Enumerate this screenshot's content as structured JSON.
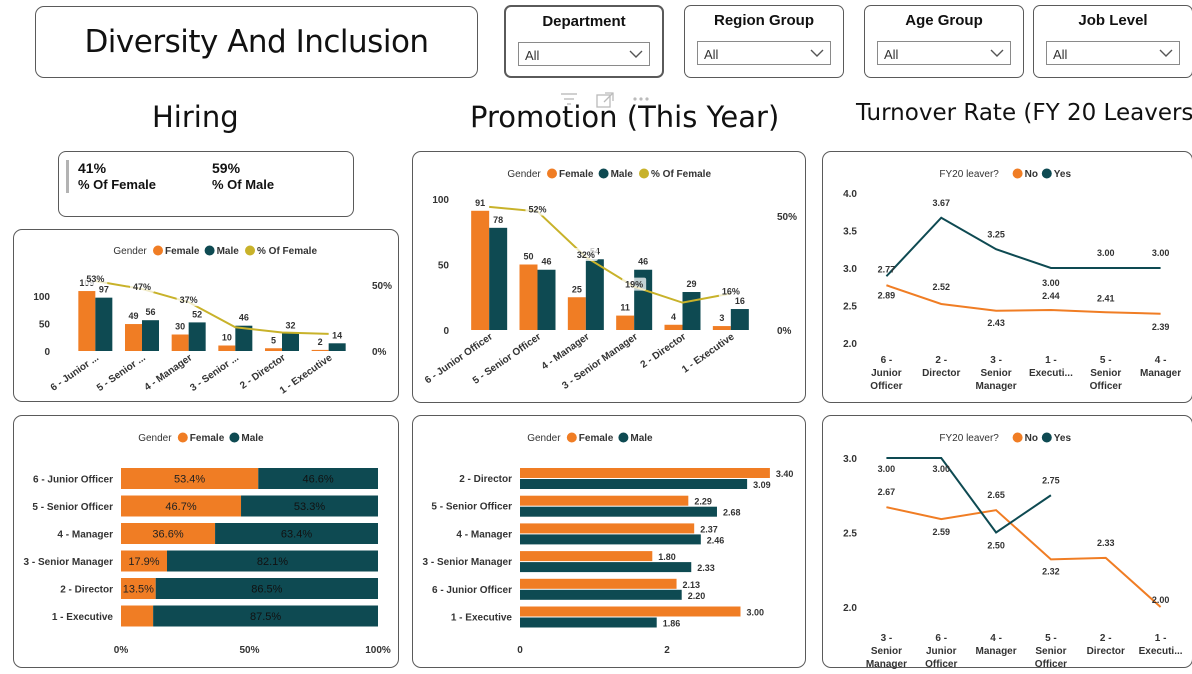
{
  "title": "Diversity And Inclusion",
  "slicers": [
    {
      "label": "Department",
      "value": "All"
    },
    {
      "label": "Region Group",
      "value": "All"
    },
    {
      "label": "Age Group",
      "value": "All"
    },
    {
      "label": "Job Level",
      "value": "All"
    }
  ],
  "sections": {
    "hiring": "Hiring",
    "promotion": "Promotion (This Year)",
    "turnover": "Turnover Rate (FY 20 Leavers)"
  },
  "kpi": {
    "female_value": "41%",
    "female_label": "% Of Female",
    "male_value": "59%",
    "male_label": "% Of Male"
  },
  "colors": {
    "female": "#f07d24",
    "male": "#0e4a52",
    "pct": "#c8b22a",
    "axis": "#252423"
  },
  "chart_data": [
    {
      "id": "hiring-combo",
      "type": "bar",
      "legend_title": "Gender",
      "legend": [
        "Female",
        "Male",
        "% Of Female"
      ],
      "categories": [
        "6 - Junior ...",
        "5 - Senior ...",
        "4 - Manager",
        "3 - Senior ...",
        "2 - Director",
        "1 - Executive"
      ],
      "series": [
        {
          "name": "Female",
          "values": [
            109,
            49,
            30,
            10,
            5,
            2
          ]
        },
        {
          "name": "Male",
          "values": [
            97,
            56,
            52,
            46,
            32,
            14
          ]
        },
        {
          "name": "% Of Female",
          "values": [
            53,
            47,
            37,
            18,
            14,
            13
          ],
          "labels": [
            "53%",
            "47%",
            "37%",
            "",
            "",
            ""
          ]
        }
      ],
      "yticks": [
        "0",
        "50",
        "100"
      ],
      "y2ticks": [
        "0%",
        "50%"
      ]
    },
    {
      "id": "promotion-combo",
      "type": "bar",
      "legend_title": "Gender",
      "legend": [
        "Female",
        "Male",
        "% Of Female"
      ],
      "categories": [
        "6 - Junior Officer",
        "5 - Senior Officer",
        "4 - Manager",
        "3 - Senior Manager",
        "2 - Director",
        "1 - Executive"
      ],
      "series": [
        {
          "name": "Female",
          "values": [
            91,
            50,
            25,
            11,
            4,
            3
          ]
        },
        {
          "name": "Male",
          "values": [
            78,
            46,
            54,
            46,
            29,
            16
          ]
        },
        {
          "name": "% Of Female",
          "values": [
            54,
            52,
            32,
            19,
            12,
            16
          ],
          "labels": [
            "",
            "52%",
            "32%",
            "19%",
            "",
            "16%"
          ]
        }
      ],
      "yticks": [
        "0",
        "50",
        "100"
      ],
      "y2ticks": [
        "0%",
        "50%"
      ]
    },
    {
      "id": "turnover-line-1",
      "type": "line",
      "legend_title": "FY20 leaver?",
      "legend": [
        "No",
        "Yes"
      ],
      "categories": [
        "6 - Junior Officer",
        "2 - Director",
        "3 - Senior Manager",
        "1 - Executi...",
        "5 - Senior Officer",
        "4 - Manager"
      ],
      "series": [
        {
          "name": "No",
          "values": [
            2.77,
            2.52,
            2.43,
            2.44,
            2.41,
            2.39
          ]
        },
        {
          "name": "Yes",
          "values": [
            2.89,
            3.67,
            3.25,
            3.0,
            3.0,
            3.0
          ]
        }
      ],
      "labels": {
        "No": [
          "2.77",
          "2.52",
          "2.43",
          "2.44",
          "2.41",
          "2.39"
        ],
        "Yes": [
          "2.89",
          "3.67",
          "3.25",
          "3.00",
          "3.00",
          "3.00"
        ]
      },
      "yticks": [
        "2.0",
        "2.5",
        "3.0",
        "3.5",
        "4.0"
      ],
      "ylim": [
        2.0,
        4.0
      ]
    },
    {
      "id": "hiring-stacked",
      "type": "bar",
      "legend_title": "Gender",
      "legend": [
        "Female",
        "Male"
      ],
      "categories": [
        "6 - Junior Officer",
        "5 - Senior Officer",
        "4 - Manager",
        "3 - Senior Manager",
        "2 - Director",
        "1 - Executive"
      ],
      "series": [
        {
          "name": "Female",
          "values": [
            53.4,
            46.7,
            36.6,
            17.9,
            13.5,
            12.5
          ],
          "labels": [
            "53.4%",
            "46.7%",
            "36.6%",
            "17.9%",
            "13.5%",
            ""
          ]
        },
        {
          "name": "Male",
          "values": [
            46.6,
            53.3,
            63.4,
            82.1,
            86.5,
            87.5
          ],
          "labels": [
            "46.6%",
            "53.3%",
            "63.4%",
            "82.1%",
            "86.5%",
            "87.5%"
          ]
        }
      ],
      "xticks": [
        "0%",
        "50%",
        "100%"
      ]
    },
    {
      "id": "promotion-clustered",
      "type": "bar",
      "legend_title": "Gender",
      "legend": [
        "Female",
        "Male"
      ],
      "categories": [
        "2 - Director",
        "5 - Senior Officer",
        "4 - Manager",
        "3 - Senior Manager",
        "6 - Junior Officer",
        "1 - Executive"
      ],
      "series": [
        {
          "name": "Female",
          "values": [
            3.4,
            2.29,
            2.37,
            1.8,
            2.13,
            3.0
          ],
          "labels": [
            "3.40",
            "2.29",
            "2.37",
            "1.80",
            "2.13",
            "3.00"
          ]
        },
        {
          "name": "Male",
          "values": [
            3.09,
            2.68,
            2.46,
            2.33,
            2.2,
            1.86
          ],
          "labels": [
            "3.09",
            "2.68",
            "2.46",
            "2.33",
            "2.20",
            "1.86"
          ]
        }
      ],
      "xticks": [
        "0",
        "2"
      ]
    },
    {
      "id": "turnover-line-2",
      "type": "line",
      "legend_title": "FY20 leaver?",
      "legend": [
        "No",
        "Yes"
      ],
      "categories": [
        "3 - Senior Manager",
        "6 - Junior Officer",
        "4 - Manager",
        "5 - Senior Officer",
        "2 - Director",
        "1 - Executi..."
      ],
      "series": [
        {
          "name": "No",
          "values": [
            2.67,
            2.59,
            2.65,
            2.32,
            2.33,
            2.0
          ]
        },
        {
          "name": "Yes",
          "values": [
            3.0,
            3.0,
            2.5,
            2.75,
            null,
            null
          ]
        }
      ],
      "labels": {
        "No": [
          "2.67",
          "2.59",
          "2.65",
          "2.32",
          "2.33",
          "2.00"
        ],
        "Yes": [
          "3.00",
          "3.00",
          "2.50",
          "2.75",
          "",
          ""
        ]
      },
      "yticks": [
        "2.0",
        "2.5",
        "3.0"
      ],
      "ylim": [
        2.0,
        3.0
      ]
    }
  ]
}
